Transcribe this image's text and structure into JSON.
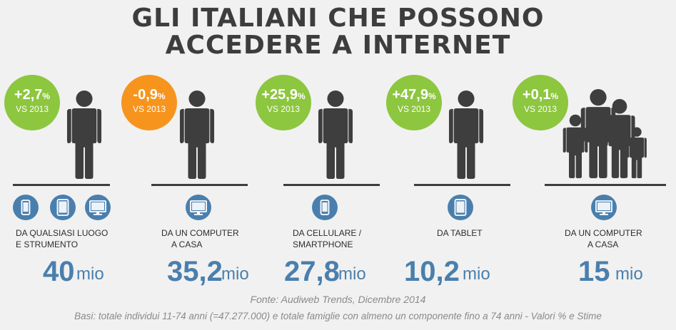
{
  "title": {
    "line1": "GLI ITALIANI CHE POSSONO",
    "line2": "ACCEDERE A INTERNET"
  },
  "colors": {
    "green": "#8dc63f",
    "orange": "#f7941d",
    "blue": "#4a7fad",
    "dark": "#3e3e3e"
  },
  "columns": [
    {
      "change": "+2,7",
      "pct_sign": "%",
      "vs": "VS 2013",
      "badge_color": "green",
      "icons": [
        "smartphone-icon",
        "tablet-icon",
        "monitor-icon"
      ],
      "label_line1": "DA QUALSIASI LUOGO",
      "label_line2": "E STRUMENTO",
      "value": "40",
      "unit": "mio"
    },
    {
      "change": "-0,9",
      "pct_sign": "%",
      "vs": "VS 2013",
      "badge_color": "orange",
      "icons": [
        "monitor-icon"
      ],
      "label_line1": "DA UN COMPUTER",
      "label_line2": "A CASA",
      "value": "35,2",
      "unit": "mio"
    },
    {
      "change": "+25,9",
      "pct_sign": "%",
      "vs": "VS 2013",
      "badge_color": "green",
      "icons": [
        "smartphone-icon"
      ],
      "label_line1": "DA CELLULARE /",
      "label_line2": "SMARTPHONE",
      "value": "27,8",
      "unit": "mio"
    },
    {
      "change": "+47,9",
      "pct_sign": "%",
      "vs": "VS 2013",
      "badge_color": "green",
      "icons": [
        "tablet-icon"
      ],
      "label_line1": "DA TABLET",
      "label_line2": "",
      "value": "10,2",
      "unit": "mio"
    },
    {
      "change": "+0,1",
      "pct_sign": "%",
      "vs": "VS 2013",
      "badge_color": "green",
      "icons": [
        "monitor-icon"
      ],
      "label_line1": "DA UN COMPUTER",
      "label_line2": "A CASA",
      "value": "15",
      "unit": "mio"
    }
  ],
  "footer": {
    "source": "Fonte: Audiweb Trends, Dicembre 2014",
    "basis": "Basi: totale individui 11-74 anni (=47.277.000) e totale famiglie con almeno un componente fino a 74 anni - Valori % e Stime"
  }
}
